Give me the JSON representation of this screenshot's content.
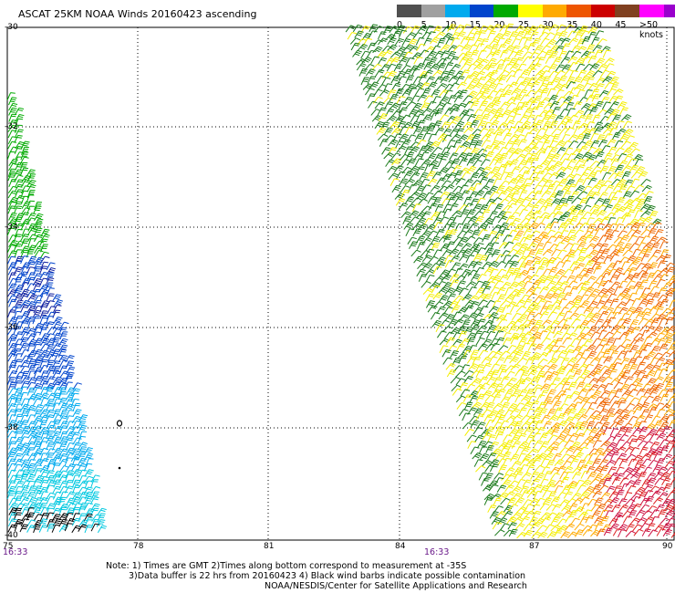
{
  "title": "ASCAT 25KM NOAA Winds 20160423 ascending",
  "legend": {
    "bins": [
      {
        "label": "0",
        "color": "#505050"
      },
      {
        "label": "5",
        "color": "#a0a0a0"
      },
      {
        "label": "10",
        "color": "#00aaee"
      },
      {
        "label": "15",
        "color": "#0044cc"
      },
      {
        "label": "20",
        "color": "#00aa00"
      },
      {
        "label": "25",
        "color": "#ffff00"
      },
      {
        "label": "30",
        "color": "#ffaa00"
      },
      {
        "label": "35",
        "color": "#ee5500"
      },
      {
        "label": "40",
        "color": "#cc0000"
      },
      {
        "label": "45",
        "color": "#804020"
      },
      {
        "label": ">50 knots",
        "color": "#ff00ff"
      }
    ],
    "extra_colors": [
      "#9900cc"
    ]
  },
  "axes": {
    "lat_labels": [
      "-30",
      "-32",
      "-34",
      "-36",
      "-38",
      "-40"
    ],
    "lon_labels": [
      "75",
      "78",
      "81",
      "84",
      "87",
      "90"
    ]
  },
  "times": [
    "16:33",
    "16:33"
  ],
  "notes": {
    "line1": "Note: 1) Times are GMT 2)Times along bottom correspond to measurement at -35S",
    "line2": "3)Data buffer is 22 hrs from 20160423 4) Black wind barbs indicate possible contamination",
    "line3": "NOAA/NESDIS/Center for Satellite Applications and Research"
  }
}
